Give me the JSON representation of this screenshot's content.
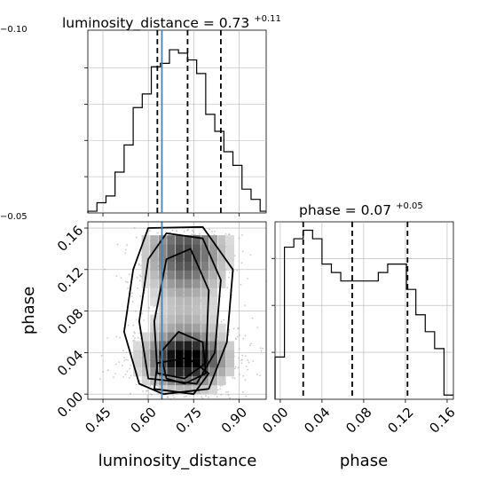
{
  "chart_data": [
    {
      "type": "histogram",
      "panel": "luminosity_distance-marginal",
      "title": {
        "prefix": "luminosity_distance = 0.73",
        "upper": "+0.11",
        "lower": "−0.10"
      },
      "x_range": [
        0.4,
        0.99
      ],
      "x_ticks": [
        0.45,
        0.6,
        0.75,
        0.9
      ],
      "bin_edges": [
        0.4,
        0.43,
        0.46,
        0.49,
        0.52,
        0.55,
        0.58,
        0.61,
        0.64,
        0.67,
        0.7,
        0.73,
        0.76,
        0.79,
        0.82,
        0.85,
        0.88,
        0.91,
        0.94,
        0.97,
        0.99
      ],
      "counts": [
        0.5,
        3,
        5,
        12,
        20,
        31,
        35,
        43,
        44,
        48,
        47,
        45,
        41,
        29,
        24,
        18,
        14,
        7,
        4,
        0.5
      ],
      "quantiles": [
        0.63,
        0.73,
        0.84
      ],
      "truth": 0.645,
      "grid": true
    },
    {
      "type": "histogram",
      "panel": "phase-marginal",
      "title": {
        "prefix": "phase = 0.07",
        "upper": "+0.05",
        "lower": "−0.05"
      },
      "x_range": [
        -0.005,
        0.166
      ],
      "x_ticks": [
        0.0,
        0.04,
        0.08,
        0.12,
        0.16
      ],
      "bin_edges": [
        -0.005,
        0.004,
        0.013,
        0.022,
        0.031,
        0.04,
        0.049,
        0.058,
        0.067,
        0.076,
        0.085,
        0.094,
        0.103,
        0.112,
        0.121,
        0.13,
        0.139,
        0.148,
        0.157,
        0.166
      ],
      "counts": [
        5,
        18,
        19,
        20,
        19,
        16,
        15,
        14,
        14,
        14,
        14,
        15,
        16,
        16,
        13,
        10,
        8,
        6,
        0.5
      ],
      "quantiles": [
        0.022,
        0.069,
        0.122
      ],
      "grid": true
    },
    {
      "type": "2d-histogram-contour",
      "panel": "joint",
      "x_label": "luminosity_distance",
      "y_label": "phase",
      "x_range": [
        0.4,
        0.99
      ],
      "y_range": [
        -0.005,
        0.166
      ],
      "x_ticks": [
        0.45,
        0.6,
        0.75,
        0.9
      ],
      "y_ticks": [
        0.0,
        0.04,
        0.08,
        0.12,
        0.16
      ],
      "truth_x": 0.645,
      "grid": true
    }
  ],
  "labels": {
    "x_bottom_left": "luminosity_distance",
    "x_bottom_right": "phase",
    "y_left": "phase"
  },
  "colors": {
    "line": "#000000",
    "truth": "#4682b4",
    "grid": "#b0b0b0",
    "scatter": "#9a9a9a"
  }
}
